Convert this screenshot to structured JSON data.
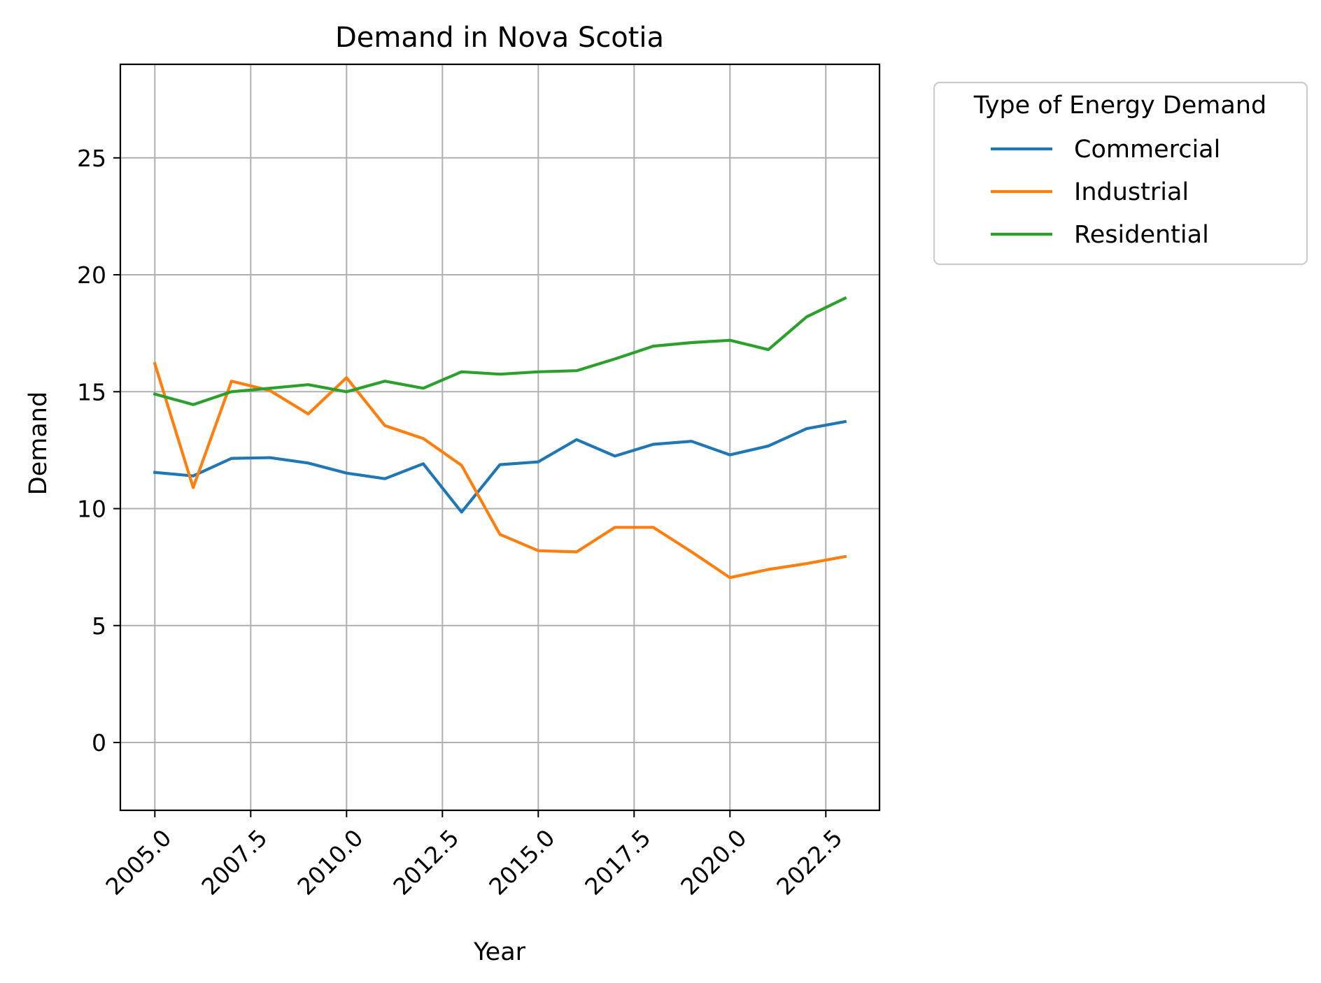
{
  "chart_data": {
    "type": "line",
    "title": "Demand in Nova Scotia",
    "xlabel": "Year",
    "ylabel": "Demand",
    "xlim": [
      2004.1,
      2023.9
    ],
    "ylim": [
      -2.9,
      29
    ],
    "xticks": [
      2005.0,
      2007.5,
      2010.0,
      2012.5,
      2015.0,
      2017.5,
      2020.0,
      2022.5
    ],
    "xtick_labels": [
      "2005.0",
      "2007.5",
      "2010.0",
      "2012.5",
      "2015.0",
      "2017.5",
      "2020.0",
      "2022.5"
    ],
    "yticks": [
      0,
      5,
      10,
      15,
      20,
      25
    ],
    "ytick_labels": [
      "0",
      "5",
      "10",
      "15",
      "20",
      "25"
    ],
    "grid": true,
    "legend": {
      "title": "Type of Energy Demand",
      "placement": "outside-upper-right"
    },
    "x": [
      2005,
      2006,
      2007,
      2008,
      2009,
      2010,
      2011,
      2012,
      2013,
      2014,
      2015,
      2016,
      2017,
      2018,
      2019,
      2020,
      2021,
      2022,
      2023
    ],
    "series": [
      {
        "name": "Commercial",
        "color": "#1f77b4",
        "values": [
          11.55,
          11.4,
          12.15,
          12.18,
          11.95,
          11.52,
          11.28,
          11.92,
          9.85,
          11.88,
          12.0,
          12.95,
          12.25,
          12.75,
          12.88,
          12.3,
          12.68,
          13.42,
          13.72
        ]
      },
      {
        "name": "Industrial",
        "color": "#ff7f0e",
        "values": [
          16.2,
          10.9,
          15.45,
          15.05,
          14.05,
          15.6,
          13.55,
          13.0,
          11.85,
          8.9,
          8.2,
          8.15,
          9.2,
          9.2,
          8.15,
          7.05,
          7.4,
          7.65,
          7.95
        ]
      },
      {
        "name": "Residential",
        "color": "#2ca02c",
        "values": [
          14.9,
          14.45,
          15.0,
          15.15,
          15.3,
          15.0,
          15.45,
          15.15,
          15.85,
          15.75,
          15.85,
          15.9,
          16.4,
          16.95,
          17.1,
          17.2,
          16.8,
          18.2,
          19.0
        ]
      }
    ]
  }
}
